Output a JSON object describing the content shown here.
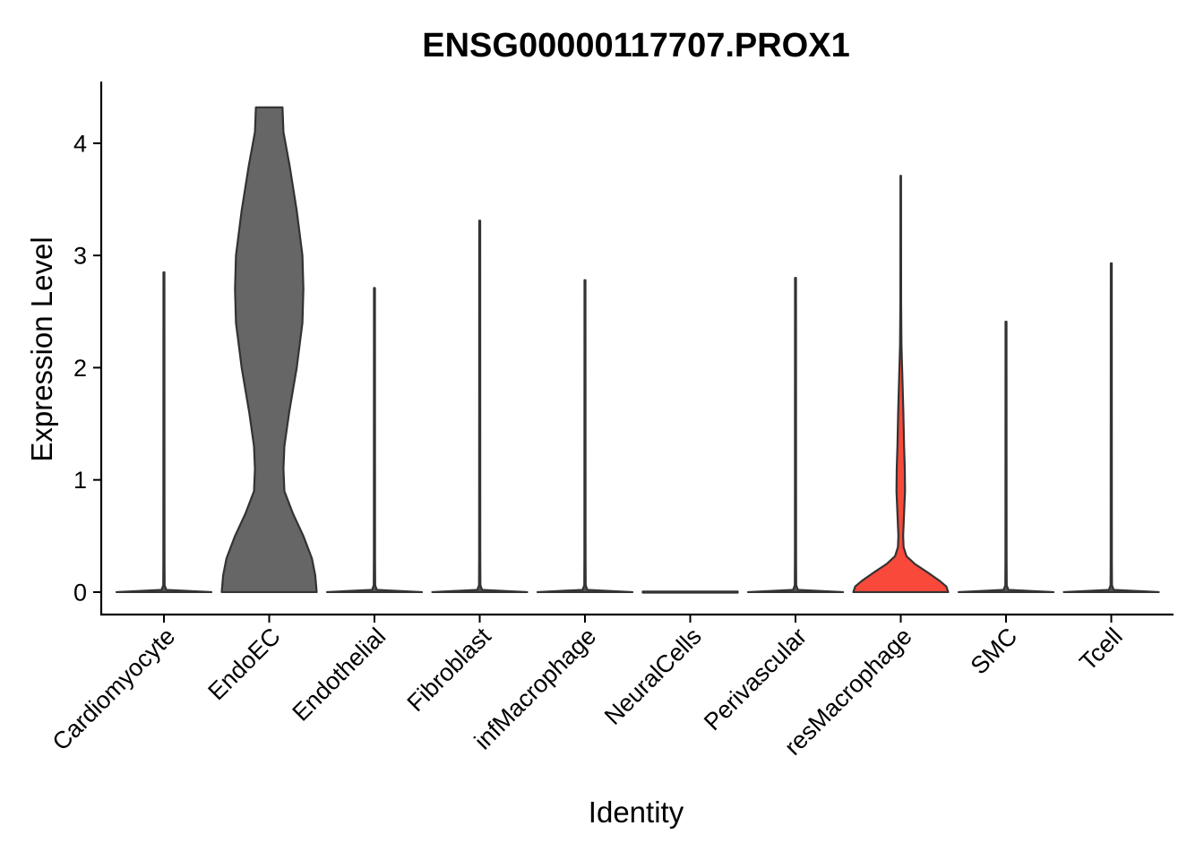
{
  "chart_data": {
    "type": "violin",
    "title": "ENSG00000117707.PROX1",
    "xlabel": "Identity",
    "ylabel": "Expression Level",
    "ylim": [
      -0.2,
      4.55
    ],
    "yticks": [
      "0",
      "1",
      "2",
      "3",
      "4"
    ],
    "ytick_values": [
      0,
      1,
      2,
      3,
      4
    ],
    "grid": false,
    "legend": "none",
    "categories": [
      "Cardiomyocyte",
      "EndoEC",
      "Endothelial",
      "Fibroblast",
      "infMacrophage",
      "NeuralCells",
      "Perivascular",
      "resMacrophage",
      "SMC",
      "Tcell"
    ],
    "series": [
      {
        "category": "Cardiomyocyte",
        "max": 2.85,
        "fill": "#555555",
        "profile": [
          [
            0,
            1.0
          ],
          [
            0.02,
            0.05
          ],
          [
            0.06,
            0.015
          ],
          [
            0.3,
            0.012
          ],
          [
            2.85,
            0.01
          ]
        ]
      },
      {
        "category": "EndoEC",
        "max": 4.32,
        "fill": "#666666",
        "profile": [
          [
            0,
            1.0
          ],
          [
            0.15,
            0.97
          ],
          [
            0.3,
            0.9
          ],
          [
            0.5,
            0.72
          ],
          [
            0.7,
            0.5
          ],
          [
            0.9,
            0.32
          ],
          [
            1.1,
            0.3
          ],
          [
            1.3,
            0.32
          ],
          [
            1.6,
            0.42
          ],
          [
            2.0,
            0.58
          ],
          [
            2.4,
            0.7
          ],
          [
            2.7,
            0.72
          ],
          [
            3.0,
            0.7
          ],
          [
            3.4,
            0.58
          ],
          [
            3.8,
            0.43
          ],
          [
            4.1,
            0.3
          ],
          [
            4.32,
            0.28
          ]
        ]
      },
      {
        "category": "Endothelial",
        "max": 2.71,
        "fill": "#555555",
        "profile": [
          [
            0,
            1.0
          ],
          [
            0.02,
            0.05
          ],
          [
            0.06,
            0.015
          ],
          [
            0.3,
            0.012
          ],
          [
            2.71,
            0.01
          ]
        ]
      },
      {
        "category": "Fibroblast",
        "max": 3.31,
        "fill": "#555555",
        "profile": [
          [
            0,
            1.0
          ],
          [
            0.02,
            0.05
          ],
          [
            0.06,
            0.015
          ],
          [
            0.3,
            0.012
          ],
          [
            3.31,
            0.01
          ]
        ]
      },
      {
        "category": "infMacrophage",
        "max": 2.78,
        "fill": "#555555",
        "profile": [
          [
            0,
            1.0
          ],
          [
            0.02,
            0.05
          ],
          [
            0.06,
            0.015
          ],
          [
            0.3,
            0.012
          ],
          [
            2.78,
            0.01
          ]
        ]
      },
      {
        "category": "NeuralCells",
        "max": 0.0,
        "fill": "#555555",
        "profile": [
          [
            0,
            1.0
          ]
        ]
      },
      {
        "category": "Perivascular",
        "max": 2.8,
        "fill": "#555555",
        "profile": [
          [
            0,
            1.0
          ],
          [
            0.02,
            0.05
          ],
          [
            0.06,
            0.015
          ],
          [
            0.3,
            0.012
          ],
          [
            2.8,
            0.01
          ]
        ]
      },
      {
        "category": "resMacrophage",
        "max": 3.71,
        "fill": "#f8493a",
        "profile": [
          [
            0,
            1.0
          ],
          [
            0.05,
            0.96
          ],
          [
            0.1,
            0.82
          ],
          [
            0.18,
            0.55
          ],
          [
            0.25,
            0.3
          ],
          [
            0.32,
            0.12
          ],
          [
            0.4,
            0.06
          ],
          [
            0.5,
            0.05
          ],
          [
            0.7,
            0.07
          ],
          [
            0.9,
            0.09
          ],
          [
            1.1,
            0.085
          ],
          [
            1.3,
            0.07
          ],
          [
            1.6,
            0.055
          ],
          [
            1.9,
            0.035
          ],
          [
            2.2,
            0.015
          ],
          [
            2.6,
            0.008
          ],
          [
            3.71,
            0.006
          ]
        ]
      },
      {
        "category": "SMC",
        "max": 2.41,
        "fill": "#555555",
        "profile": [
          [
            0,
            1.0
          ],
          [
            0.02,
            0.05
          ],
          [
            0.06,
            0.015
          ],
          [
            0.3,
            0.012
          ],
          [
            2.41,
            0.01
          ]
        ]
      },
      {
        "category": "Tcell",
        "max": 2.93,
        "fill": "#555555",
        "profile": [
          [
            0,
            1.0
          ],
          [
            0.02,
            0.05
          ],
          [
            0.06,
            0.015
          ],
          [
            0.3,
            0.012
          ],
          [
            2.93,
            0.01
          ]
        ]
      }
    ]
  }
}
